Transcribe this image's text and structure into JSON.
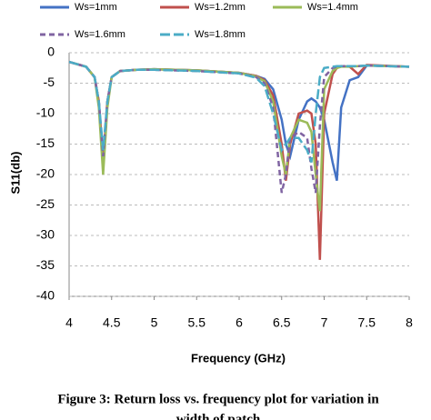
{
  "chart_data": {
    "type": "line",
    "x_label": "Frequency (GHz)",
    "y_label": "S11(db)",
    "caption": [
      "Figure 3: Return loss vs. frequency plot for variation in",
      "width of patch"
    ],
    "x": [
      4,
      4.2,
      4.3,
      4.35,
      4.4,
      4.45,
      4.5,
      4.6,
      4.8,
      5,
      5.5,
      6,
      6.2,
      6.3,
      6.4,
      6.5,
      6.55,
      6.6,
      6.7,
      6.8,
      6.85,
      6.9,
      6.95,
      7,
      7.1,
      7.15,
      7.2,
      7.3,
      7.4,
      7.5,
      8
    ],
    "series": [
      {
        "name": "Ws=1mm",
        "color": "#4472c4",
        "linestyle": "solid",
        "values": [
          -1.5,
          -2.3,
          -4,
          -8,
          -18.5,
          -8,
          -4,
          -3,
          -2.8,
          -2.7,
          -2.9,
          -3.3,
          -3.8,
          -4.3,
          -6,
          -11,
          -15,
          -17,
          -11,
          -8,
          -7.5,
          -8,
          -9,
          -11,
          -18,
          -21,
          -9,
          -4.5,
          -4,
          -2.1,
          -2.3
        ]
      },
      {
        "name": "Ws=1.2mm",
        "color": "#c0504d",
        "linestyle": "solid",
        "values": [
          -1.5,
          -2.3,
          -4,
          -8,
          -18,
          -8,
          -4,
          -3,
          -2.8,
          -2.7,
          -2.9,
          -3.3,
          -3.8,
          -4.5,
          -7,
          -15,
          -21,
          -15,
          -10,
          -9.5,
          -10,
          -15,
          -34,
          -10,
          -3.5,
          -2.5,
          -2.2,
          -2.3,
          -3.5,
          -2,
          -2.3
        ]
      },
      {
        "name": "Ws=1.4mm",
        "color": "#9bbb59",
        "linestyle": "solid",
        "values": [
          -1.5,
          -2.3,
          -4,
          -9,
          -20,
          -9,
          -4,
          -3,
          -2.8,
          -2.7,
          -2.9,
          -3.3,
          -3.9,
          -4.7,
          -8,
          -17,
          -20,
          -14,
          -11,
          -11.5,
          -13,
          -20,
          -26,
          -6,
          -3,
          -2.5,
          -2.3,
          -2.3,
          -2.2,
          -2.1,
          -2.3
        ]
      },
      {
        "name": "Ws=1.6mm",
        "color": "#8064a2",
        "linestyle": "dashed",
        "values": [
          -1.5,
          -2.3,
          -4,
          -8,
          -17,
          -8,
          -4,
          -3,
          -2.8,
          -2.8,
          -3,
          -3.4,
          -4,
          -5,
          -9,
          -23,
          -20,
          -14,
          -13,
          -14,
          -19,
          -23,
          -12,
          -4,
          -2.5,
          -2.3,
          -2.2,
          -2.2,
          -2.2,
          -2.1,
          -2.3
        ]
      },
      {
        "name": "Ws=1.8mm",
        "color": "#4bacc6",
        "linestyle": "long-dashed",
        "values": [
          -1.5,
          -2.3,
          -4,
          -8,
          -16,
          -8,
          -4,
          -3,
          -2.8,
          -2.8,
          -3,
          -3.4,
          -4.1,
          -5.5,
          -10,
          -16,
          -15,
          -14,
          -14,
          -16,
          -18,
          -10,
          -4,
          -2.5,
          -2.3,
          -2.2,
          -2.2,
          -2.2,
          -2.2,
          -2.1,
          -2.3
        ]
      }
    ],
    "xlim": [
      4,
      8
    ],
    "xticks": [
      4,
      4.5,
      5,
      5.5,
      6,
      6.5,
      7,
      7.5,
      8
    ],
    "ylim": [
      -40,
      0
    ],
    "yticks": [
      0,
      -5,
      -10,
      -15,
      -20,
      -25,
      -30,
      -35,
      -40
    ],
    "grid": true
  }
}
